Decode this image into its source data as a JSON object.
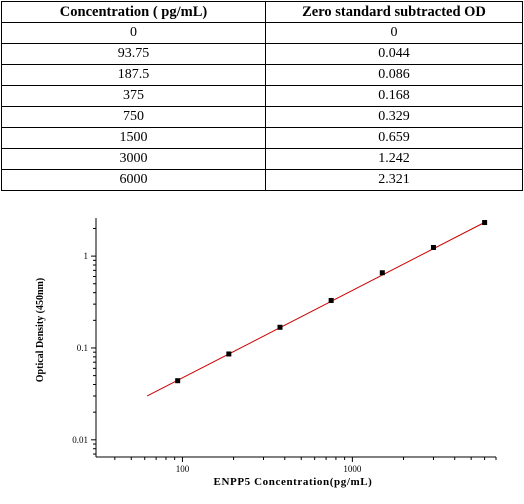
{
  "table": {
    "headers": [
      "Concentration ( pg/mL)",
      "Zero standard subtracted OD"
    ],
    "rows": [
      [
        "0",
        "0"
      ],
      [
        "93.75",
        "0.044"
      ],
      [
        "187.5",
        "0.086"
      ],
      [
        "375",
        "0.168"
      ],
      [
        "750",
        "0.329"
      ],
      [
        "1500",
        "0.659"
      ],
      [
        "3000",
        "1.242"
      ],
      [
        "6000",
        "2.321"
      ]
    ]
  },
  "chart_data": {
    "type": "scatter",
    "x_scale": "log",
    "y_scale": "log",
    "xlabel": "ENPP5  Concentration(pg/mL)",
    "ylabel": "Optical Density (450nm)",
    "xlim": [
      31,
      7000
    ],
    "ylim": [
      0.0065,
      2.6
    ],
    "x_ticks": [
      100,
      1000
    ],
    "x_tick_labels": [
      "100",
      "1000"
    ],
    "y_ticks": [
      0.01,
      0.1,
      1
    ],
    "y_tick_labels": [
      "0.01",
      "0.1",
      "1"
    ],
    "grid": false,
    "point_color": "#000000",
    "line_color": "#cc0000",
    "series": [
      {
        "x": [
          93.75,
          187.5,
          375,
          750,
          1500,
          3000,
          6000
        ],
        "y": [
          0.044,
          0.086,
          0.168,
          0.329,
          0.659,
          1.242,
          2.321
        ]
      }
    ],
    "fit_line": {
      "x": [
        62,
        6000
      ],
      "y": [
        0.03,
        2.33
      ]
    }
  }
}
